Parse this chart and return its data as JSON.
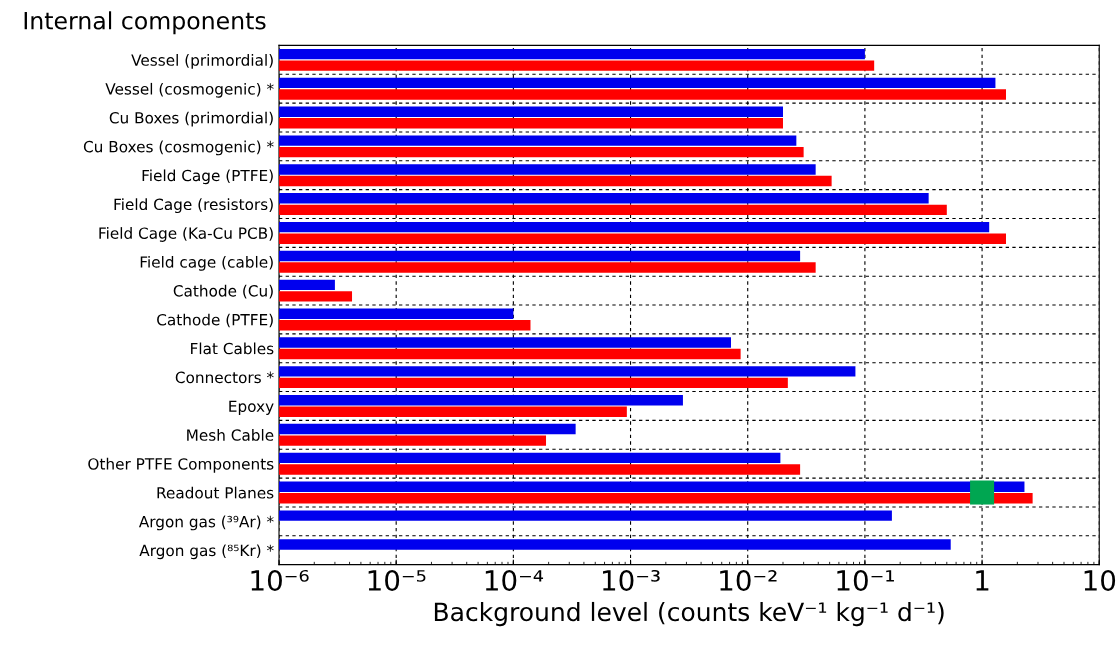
{
  "chart_data": {
    "type": "bar",
    "orientation": "horizontal",
    "title": "Internal components",
    "xlabel": "Background level (counts keV⁻¹ kg⁻¹ d⁻¹)",
    "categories": [
      "Vessel (primordial)",
      "Vessel (cosmogenic) *",
      "Cu Boxes (primordial)",
      "Cu Boxes (cosmogenic) *",
      "Field Cage (PTFE)",
      "Field Cage (resistors)",
      "Field Cage (Ka-Cu PCB)",
      "Field cage (cable)",
      "Cathode (Cu)",
      "Cathode (PTFE)",
      "Flat Cables",
      "Connectors *",
      "Epoxy",
      "Mesh Cable",
      "Other PTFE Components",
      "Readout Planes",
      "Argon gas (³⁹Ar) *",
      "Argon gas (⁸⁵Kr) *"
    ],
    "series": [
      {
        "color": "#0000ee",
        "values": [
          0.1,
          1.3,
          0.02,
          0.026,
          0.038,
          0.35,
          1.15,
          0.028,
          3e-06,
          0.0001,
          0.0072,
          0.083,
          0.0028,
          0.00034,
          0.019,
          2.3,
          0.17,
          0.54
        ]
      },
      {
        "color": "#ff0000",
        "values": [
          0.12,
          1.6,
          0.02,
          0.03,
          0.052,
          0.5,
          1.6,
          0.038,
          4.2e-06,
          0.00014,
          0.0087,
          0.022,
          0.00093,
          0.00019,
          0.028,
          2.7,
          null,
          null
        ]
      },
      {
        "type": "scatter",
        "color": "#00a651",
        "marker": "square",
        "values": [
          null,
          null,
          null,
          null,
          null,
          null,
          null,
          null,
          null,
          null,
          null,
          null,
          null,
          null,
          null,
          1,
          null,
          null
        ]
      }
    ],
    "log": "x",
    "xlim": [
      1e-06,
      10
    ],
    "xticks": [
      {
        "value": 1e-06,
        "label": "10⁻⁶"
      },
      {
        "value": 1e-05,
        "label": "10⁻⁵"
      },
      {
        "value": 0.0001,
        "label": "10⁻⁴"
      },
      {
        "value": 0.001,
        "label": "10⁻³"
      },
      {
        "value": 0.01,
        "label": "10⁻²"
      },
      {
        "value": 0.1,
        "label": "10⁻¹"
      },
      1,
      10
    ],
    "grid": true
  }
}
